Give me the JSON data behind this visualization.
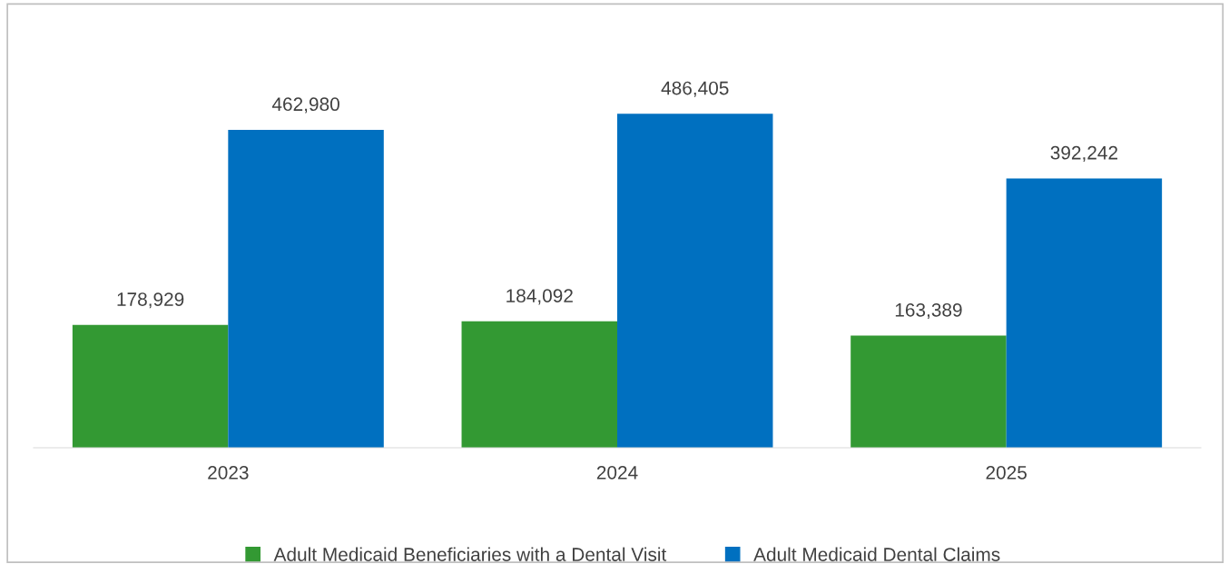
{
  "chart_data": {
    "type": "bar",
    "categories": [
      "2023",
      "2024",
      "2025"
    ],
    "series": [
      {
        "name": "Adult Medicaid Beneficiaries with a Dental Visit",
        "color": "#339933",
        "values": [
          178929,
          184092,
          163389
        ],
        "value_labels": [
          "178,929",
          "184,092",
          "163,389"
        ]
      },
      {
        "name": "Adult Medicaid Dental Claims",
        "color": "#0070c0",
        "values": [
          462980,
          486405,
          392242
        ],
        "value_labels": [
          "462,980",
          "486,405",
          "392,242"
        ]
      }
    ],
    "grid": false,
    "legend": "bottom"
  }
}
